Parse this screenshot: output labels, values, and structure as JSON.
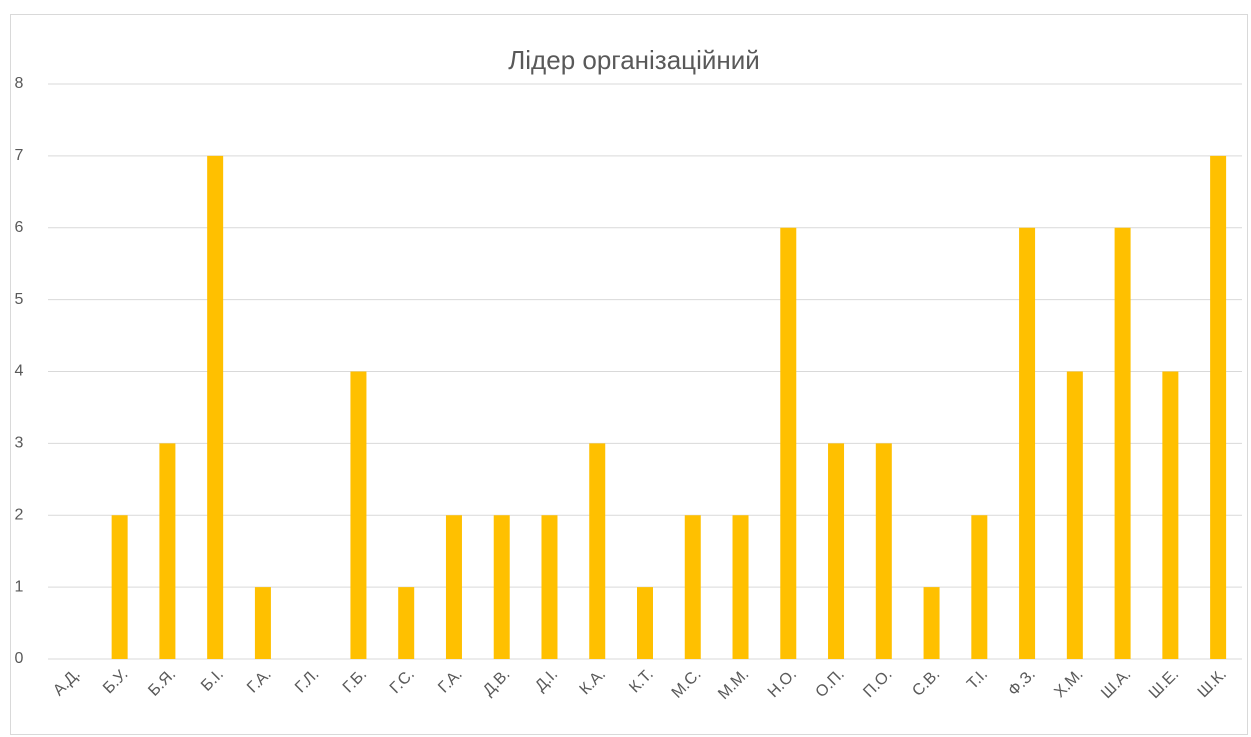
{
  "chart_data": {
    "type": "bar",
    "title": "Лідер організаційний",
    "categories": [
      "А.Д.",
      "Б.У.",
      "Б.Я.",
      "Б.І.",
      "Г.А.",
      "Г.Л.",
      "Г.Б.",
      "Г.С.",
      "Г.А.",
      "Д.В.",
      "Д.І.",
      "К.А.",
      "К.Т.",
      "М.С.",
      "М.М.",
      "Н.О.",
      "О.П.",
      "П.О.",
      "С.В.",
      "Т.І.",
      "Ф.З.",
      "Х.М.",
      "Ш.А.",
      "Ш.Е.",
      "Ш.К."
    ],
    "values": [
      0,
      2,
      3,
      7,
      1,
      0,
      4,
      1,
      2,
      2,
      2,
      3,
      1,
      2,
      2,
      6,
      3,
      3,
      1,
      2,
      6,
      4,
      6,
      4,
      7
    ],
    "color": "#FFC000",
    "ylim": [
      0,
      8
    ],
    "yticks": [
      0,
      1,
      2,
      3,
      4,
      5,
      6,
      7,
      8
    ],
    "grid": true
  }
}
